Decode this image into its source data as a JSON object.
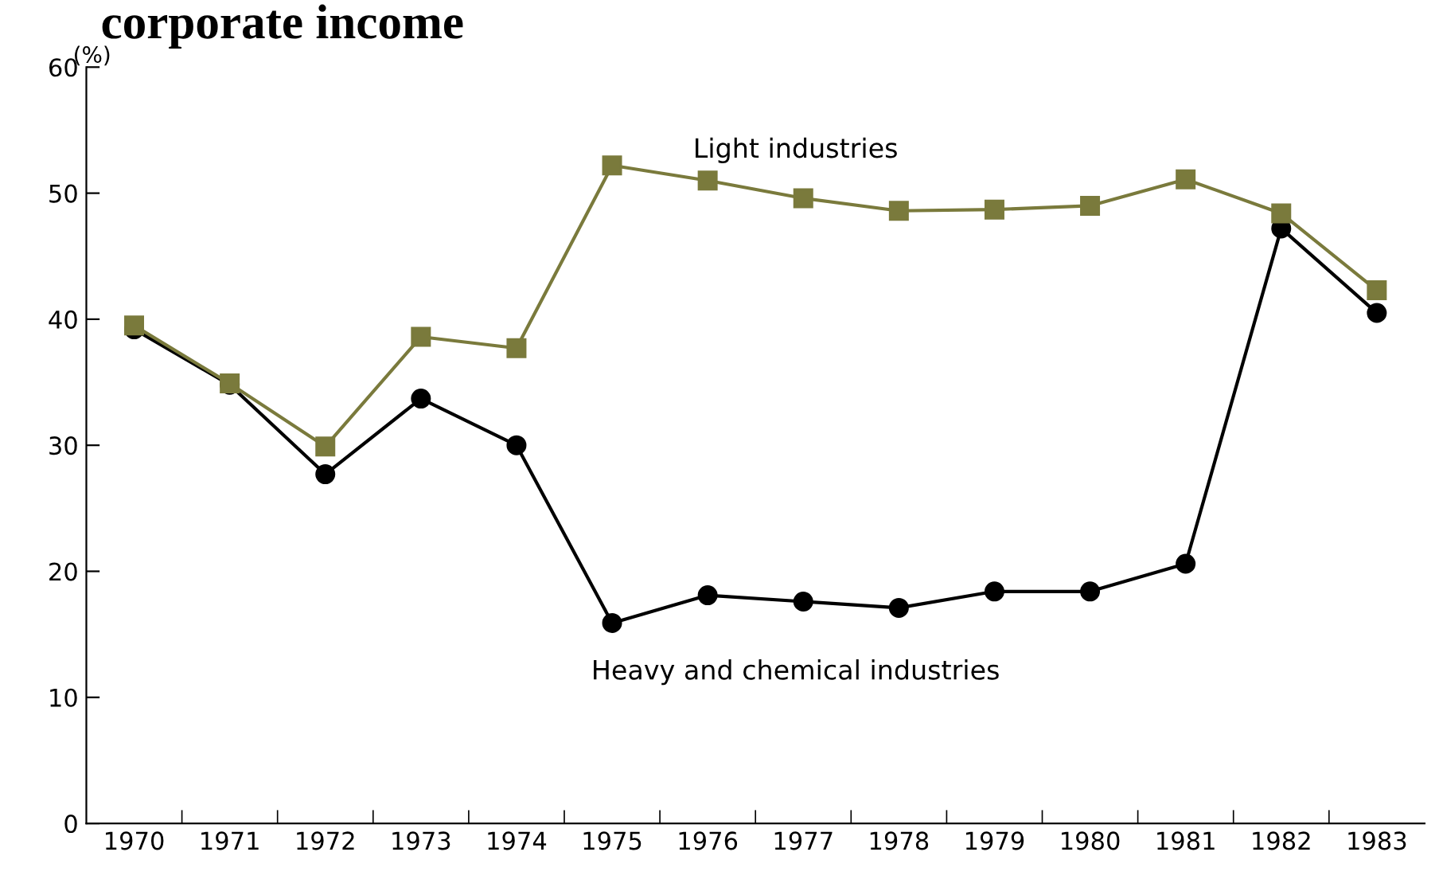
{
  "chart_data": {
    "type": "line",
    "title": "corporate income",
    "ylabel": "(%)",
    "categories": [
      "1970",
      "1971",
      "1972",
      "1973",
      "1974",
      "1975",
      "1976",
      "1977",
      "1978",
      "1979",
      "1980",
      "1981",
      "1982",
      "1983"
    ],
    "series": [
      {
        "name": "Light industries",
        "color": "#7a7a3c",
        "marker": "square",
        "values": [
          39.5,
          34.9,
          29.9,
          38.6,
          37.7,
          52.2,
          51.0,
          49.6,
          48.6,
          48.7,
          49.0,
          51.1,
          48.4,
          42.3
        ]
      },
      {
        "name": "Heavy and chemical industries",
        "color": "#000000",
        "marker": "circle",
        "values": [
          39.2,
          34.8,
          27.7,
          33.7,
          30.0,
          15.9,
          18.1,
          17.6,
          17.1,
          18.4,
          18.4,
          20.6,
          47.2,
          40.5
        ]
      }
    ],
    "ylim": [
      0,
      60
    ],
    "yticks": [
      0,
      10,
      20,
      30,
      40,
      50,
      60
    ],
    "grid": false,
    "legend": false,
    "line_style": "solid"
  }
}
